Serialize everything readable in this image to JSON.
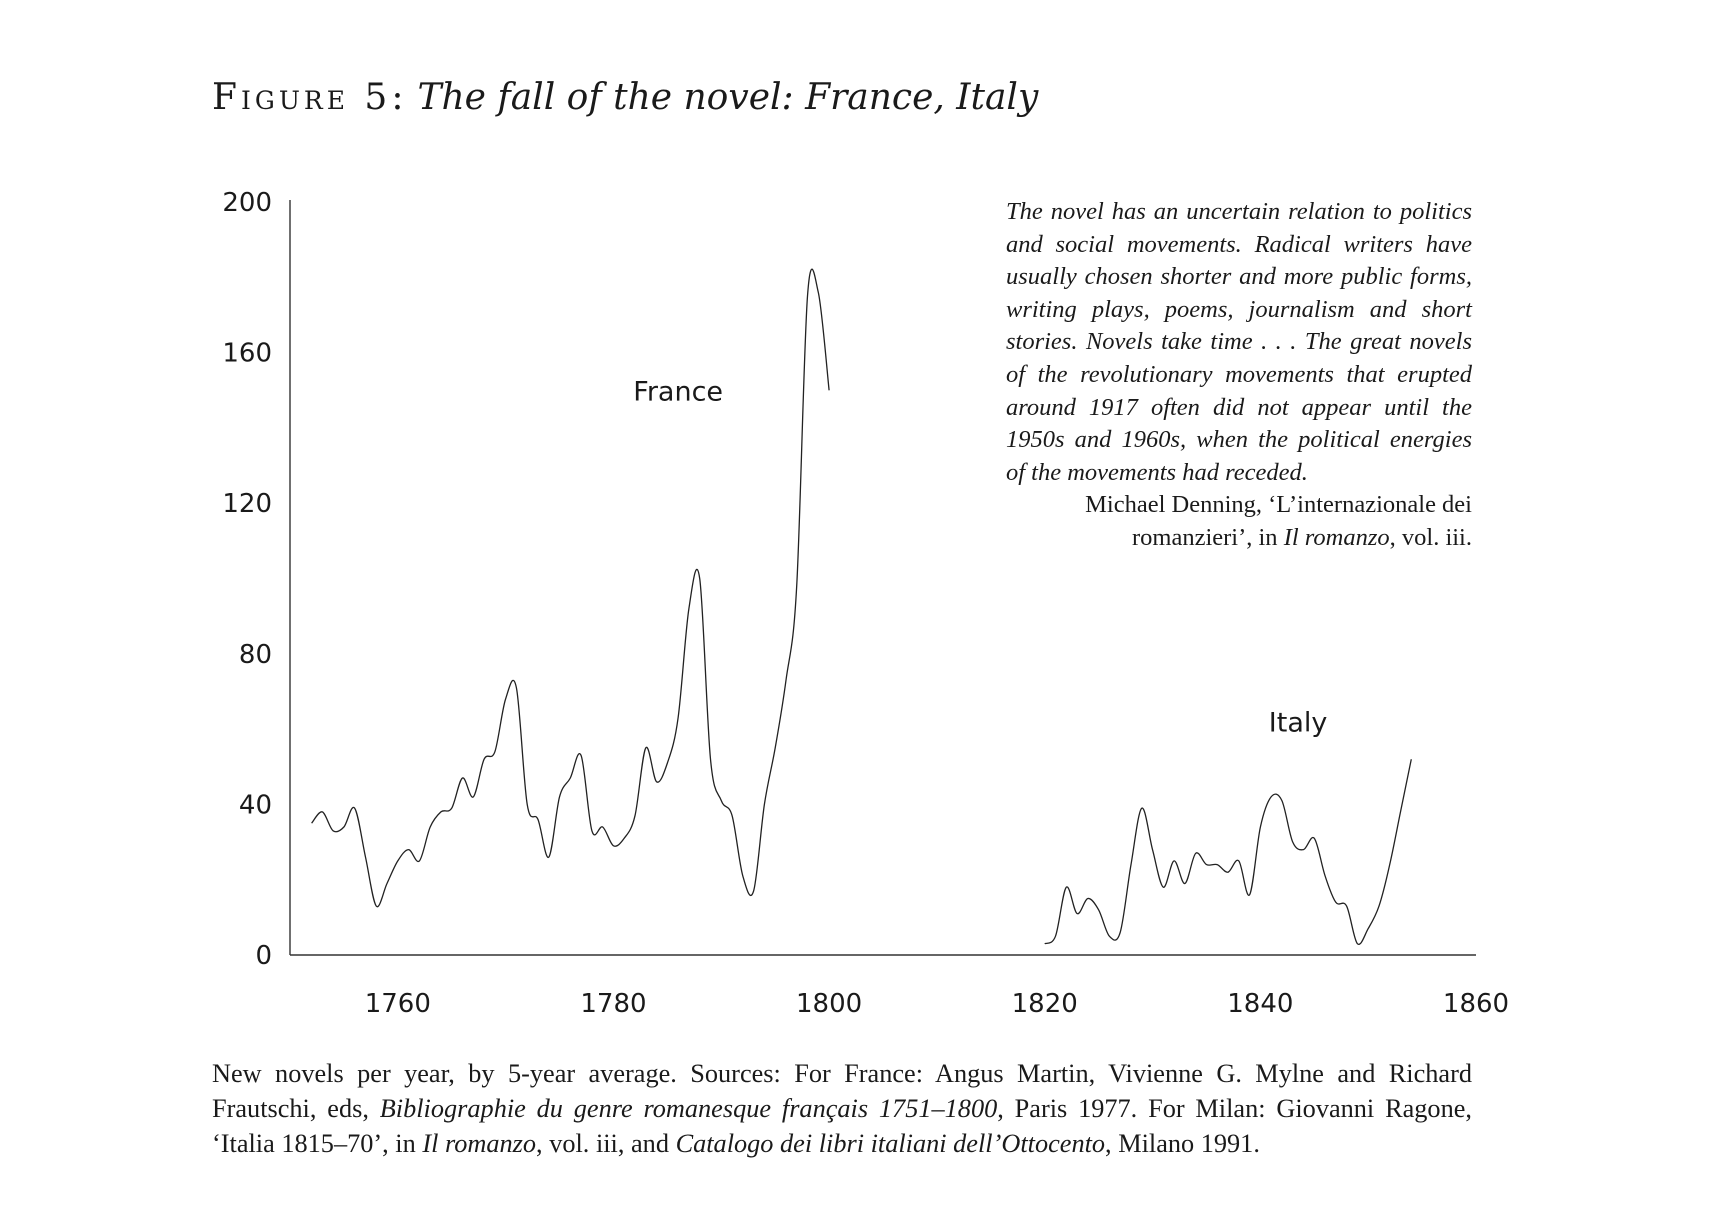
{
  "figure": {
    "label": "Figure 5:",
    "subtitle": "The fall of the novel: France, Italy"
  },
  "chart_data": {
    "type": "line",
    "title": "Figure 5: The fall of the novel: France, Italy",
    "xlabel": "",
    "ylabel": "",
    "xlim": [
      1750,
      1860
    ],
    "ylim": [
      0,
      200
    ],
    "x_ticks": [
      1760,
      1780,
      1800,
      1820,
      1840,
      1860
    ],
    "y_ticks": [
      0,
      40,
      80,
      120,
      160,
      200
    ],
    "grid": false,
    "legend": "none (series labelled directly on the plot)",
    "series": [
      {
        "name": "France",
        "x": [
          1752,
          1753,
          1754,
          1755,
          1756,
          1757,
          1758,
          1759,
          1760,
          1761,
          1762,
          1763,
          1764,
          1765,
          1766,
          1767,
          1768,
          1769,
          1770,
          1771,
          1772,
          1773,
          1774,
          1775,
          1776,
          1777,
          1778,
          1779,
          1780,
          1781,
          1782,
          1783,
          1784,
          1785,
          1786,
          1787,
          1788,
          1789,
          1790,
          1791,
          1792,
          1793,
          1794,
          1795,
          1796,
          1797,
          1798,
          1799,
          1800
        ],
        "y": [
          35,
          38,
          33,
          34,
          39,
          26,
          13,
          19,
          25,
          28,
          25,
          34,
          38,
          39,
          47,
          42,
          52,
          54,
          68,
          71,
          40,
          36,
          26,
          42,
          47,
          53,
          33,
          34,
          29,
          31,
          37,
          55,
          46,
          51,
          63,
          92,
          100,
          52,
          41,
          37,
          21,
          17,
          40,
          55,
          73,
          98,
          175,
          176,
          150
        ]
      },
      {
        "name": "Italy",
        "x": [
          1820,
          1821,
          1822,
          1823,
          1824,
          1825,
          1826,
          1827,
          1828,
          1829,
          1830,
          1831,
          1832,
          1833,
          1834,
          1835,
          1836,
          1837,
          1838,
          1839,
          1840,
          1841,
          1842,
          1843,
          1844,
          1845,
          1846,
          1847,
          1848,
          1849,
          1850,
          1851,
          1852,
          1853,
          1854
        ],
        "y": [
          3,
          5,
          18,
          11,
          15,
          12,
          5,
          6,
          24,
          39,
          28,
          18,
          25,
          19,
          27,
          24,
          24,
          22,
          25,
          16,
          34,
          42,
          41,
          30,
          28,
          31,
          21,
          14,
          13,
          3,
          7,
          13,
          24,
          38,
          52
        ]
      }
    ],
    "annotations": [
      "France",
      "Italy"
    ]
  },
  "epigraph": {
    "quote": "The novel has an uncertain relation to politics and social movements. Radical writers have usually chosen shorter and more public forms, writing plays, poems, journalism and short stories. Novels take time . . . The great novels of the revolutionary movements that erupted around 1917 often did not appear until the 1950s and 1960s, when the political energies of the movements had receded.",
    "attribution_author": "Michael Denning, ‘L’internazionale dei romanzieri’, in",
    "attribution_work": "Il romanzo",
    "attribution_tail": ", vol. iii."
  },
  "caption": {
    "text_1": "New novels per year, by 5-year average. Sources: For France: Angus Martin, Vivienne G. Mylne and Richard Frautschi, eds,",
    "title_1": "Bibliographie du genre romanesque français 1751–1800",
    "text_2": ", Paris 1977. For Milan: Giovanni Ragone, ‘Italia 1815–70’, in",
    "title_2": "Il romanzo",
    "text_3": ", vol. iii, and",
    "title_3": "Catalogo dei libri italiani dell’Ottocento",
    "text_4": ", Milano 1991."
  }
}
